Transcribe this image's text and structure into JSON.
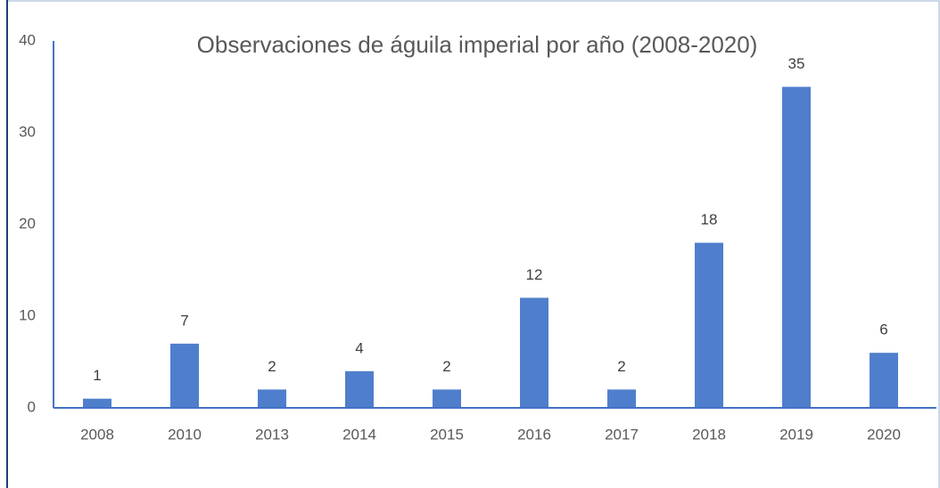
{
  "chart_data": {
    "type": "bar",
    "title": "Observaciones de águila imperial por año (2008-2020)",
    "categories": [
      "2008",
      "2010",
      "2013",
      "2014",
      "2015",
      "2016",
      "2017",
      "2018",
      "2019",
      "2020"
    ],
    "values": [
      1,
      7,
      2,
      4,
      2,
      12,
      2,
      18,
      35,
      6
    ],
    "color": "#4f7fcc",
    "ylim": [
      0,
      40
    ],
    "yticks": [
      0,
      10,
      20,
      30,
      40
    ],
    "grid": false,
    "data_labels": true
  }
}
